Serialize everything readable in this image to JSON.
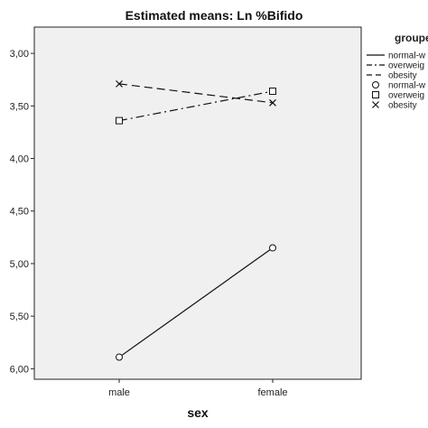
{
  "chart_data": {
    "type": "line",
    "title": "Estimated means: Ln %Bifido",
    "xlabel": "sex",
    "ylabel": "",
    "categories": [
      "male",
      "female"
    ],
    "ylim": [
      -6.1,
      -2.75
    ],
    "y_ticks": [
      -3.0,
      -3.5,
      -4.0,
      -4.5,
      -5.0,
      -5.5,
      -6.0
    ],
    "y_tick_labels": [
      "3,00",
      "3,50",
      "4,00",
      "4,50",
      "5,00",
      "5,50",
      "6,00"
    ],
    "grid": false,
    "legend_title": "groupe",
    "legend_position": "right",
    "series": [
      {
        "name": "normal-weight",
        "legend_label": "normal-w",
        "values": [
          -5.89,
          -4.85
        ],
        "line_style": "solid",
        "marker": "circle"
      },
      {
        "name": "overweight",
        "legend_label": "overweig",
        "values": [
          -3.64,
          -3.36
        ],
        "line_style": "dashdot",
        "marker": "square"
      },
      {
        "name": "obesity",
        "legend_label": "obesity",
        "values": [
          -3.29,
          -3.47
        ],
        "line_style": "dashed",
        "marker": "x"
      }
    ],
    "legend_entries": [
      {
        "symbol": "line-solid",
        "label": "normal-w"
      },
      {
        "symbol": "line-dashdot",
        "label": "overweig"
      },
      {
        "symbol": "line-dashed",
        "label": "obesity"
      },
      {
        "symbol": "circle",
        "label": "normal-w"
      },
      {
        "symbol": "square",
        "label": "overweig"
      },
      {
        "symbol": "x",
        "label": "obesity"
      }
    ],
    "colors": {
      "plot_background": "#f0f0f0",
      "line": "#111111",
      "axis": "#222222"
    }
  }
}
